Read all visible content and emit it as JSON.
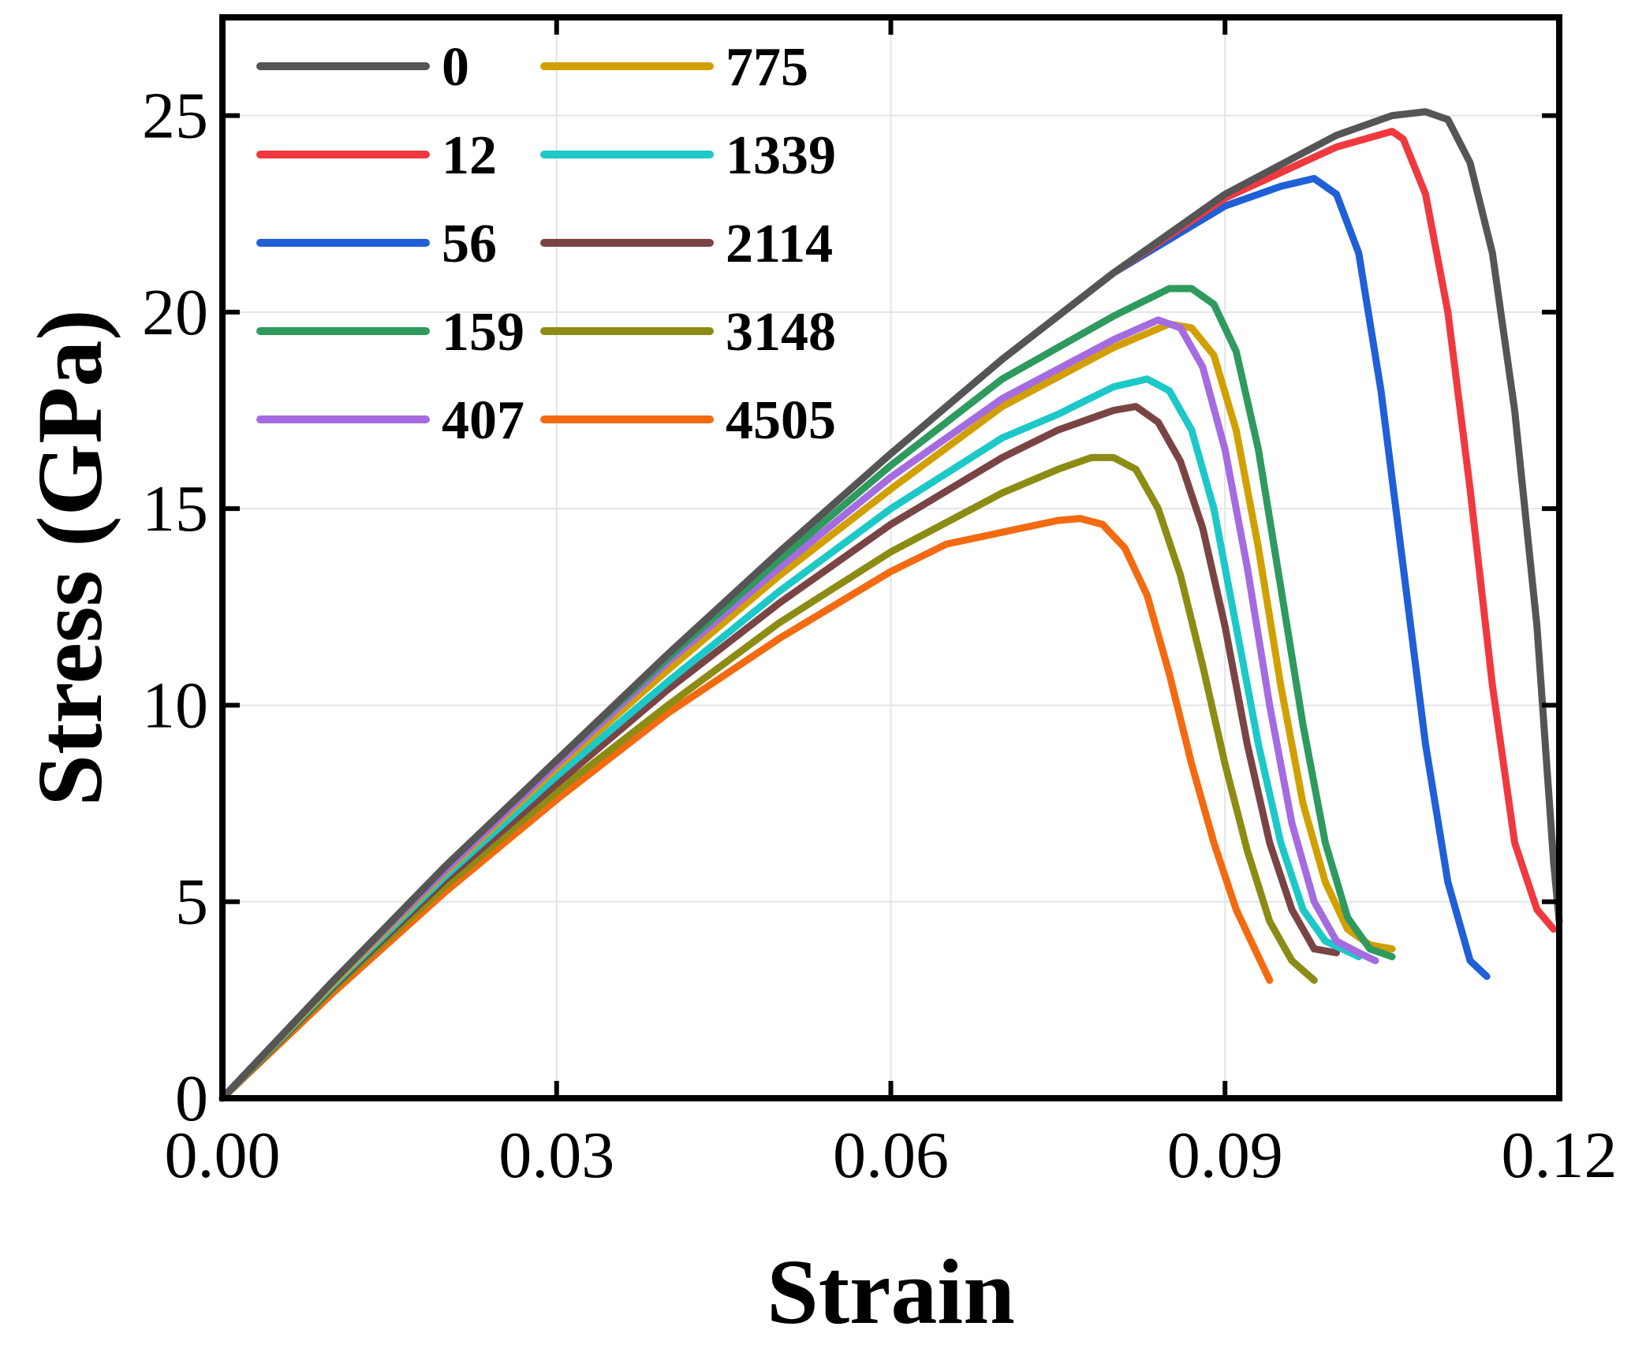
{
  "chart_data": {
    "type": "line",
    "title": "",
    "xlabel": "Strain",
    "ylabel": "Stress (GPa)",
    "xlim": [
      0,
      0.12
    ],
    "ylim": [
      0,
      27.5
    ],
    "xticks": [
      0.0,
      0.03,
      0.06,
      0.09,
      0.12
    ],
    "xtick_labels": [
      "0.00",
      "0.03",
      "0.06",
      "0.09",
      "0.12"
    ],
    "yticks": [
      0,
      5,
      10,
      15,
      20,
      25
    ],
    "ytick_labels": [
      "0",
      "5",
      "10",
      "15",
      "20",
      "25"
    ],
    "grid": true,
    "legend_position": "top-left",
    "series": [
      {
        "name": "0",
        "color": "#555555",
        "points": [
          [
            0,
            0
          ],
          [
            0.01,
            3.0
          ],
          [
            0.02,
            5.9
          ],
          [
            0.03,
            8.6
          ],
          [
            0.04,
            11.3
          ],
          [
            0.05,
            13.9
          ],
          [
            0.06,
            16.4
          ],
          [
            0.07,
            18.8
          ],
          [
            0.08,
            21.0
          ],
          [
            0.09,
            23.0
          ],
          [
            0.1,
            24.5
          ],
          [
            0.105,
            25.0
          ],
          [
            0.108,
            25.1
          ],
          [
            0.11,
            24.9
          ],
          [
            0.112,
            23.8
          ],
          [
            0.114,
            21.5
          ],
          [
            0.116,
            17.5
          ],
          [
            0.118,
            12.0
          ],
          [
            0.1195,
            6.0
          ],
          [
            0.12,
            4.5
          ]
        ]
      },
      {
        "name": "12",
        "color": "#F0393F",
        "points": [
          [
            0,
            0
          ],
          [
            0.01,
            3.0
          ],
          [
            0.02,
            5.9
          ],
          [
            0.03,
            8.6
          ],
          [
            0.04,
            11.3
          ],
          [
            0.05,
            13.9
          ],
          [
            0.06,
            16.4
          ],
          [
            0.07,
            18.8
          ],
          [
            0.08,
            21.0
          ],
          [
            0.09,
            22.9
          ],
          [
            0.1,
            24.2
          ],
          [
            0.105,
            24.6
          ],
          [
            0.106,
            24.4
          ],
          [
            0.108,
            23.0
          ],
          [
            0.11,
            20.0
          ],
          [
            0.112,
            15.5
          ],
          [
            0.114,
            10.5
          ],
          [
            0.116,
            6.5
          ],
          [
            0.118,
            4.8
          ],
          [
            0.1195,
            4.3
          ]
        ]
      },
      {
        "name": "56",
        "color": "#1F5FD8",
        "points": [
          [
            0,
            0
          ],
          [
            0.01,
            3.0
          ],
          [
            0.02,
            5.9
          ],
          [
            0.03,
            8.6
          ],
          [
            0.04,
            11.3
          ],
          [
            0.05,
            13.9
          ],
          [
            0.06,
            16.4
          ],
          [
            0.07,
            18.8
          ],
          [
            0.08,
            21.0
          ],
          [
            0.09,
            22.7
          ],
          [
            0.095,
            23.2
          ],
          [
            0.098,
            23.4
          ],
          [
            0.1,
            23.0
          ],
          [
            0.102,
            21.5
          ],
          [
            0.104,
            18.0
          ],
          [
            0.106,
            13.5
          ],
          [
            0.108,
            9.0
          ],
          [
            0.11,
            5.5
          ],
          [
            0.112,
            3.5
          ],
          [
            0.1135,
            3.1
          ]
        ]
      },
      {
        "name": "159",
        "color": "#2E9A5E",
        "points": [
          [
            0,
            0
          ],
          [
            0.01,
            3.0
          ],
          [
            0.02,
            5.9
          ],
          [
            0.03,
            8.6
          ],
          [
            0.04,
            11.2
          ],
          [
            0.05,
            13.7
          ],
          [
            0.06,
            16.1
          ],
          [
            0.07,
            18.3
          ],
          [
            0.08,
            19.9
          ],
          [
            0.085,
            20.6
          ],
          [
            0.087,
            20.6
          ],
          [
            0.089,
            20.2
          ],
          [
            0.091,
            19.0
          ],
          [
            0.093,
            16.5
          ],
          [
            0.095,
            13.0
          ],
          [
            0.097,
            9.5
          ],
          [
            0.099,
            6.5
          ],
          [
            0.101,
            4.6
          ],
          [
            0.103,
            3.8
          ],
          [
            0.105,
            3.6
          ]
        ]
      },
      {
        "name": "407",
        "color": "#A56BE0",
        "points": [
          [
            0,
            0
          ],
          [
            0.01,
            3.0
          ],
          [
            0.02,
            5.8
          ],
          [
            0.03,
            8.5
          ],
          [
            0.04,
            11.1
          ],
          [
            0.05,
            13.5
          ],
          [
            0.06,
            15.8
          ],
          [
            0.07,
            17.8
          ],
          [
            0.08,
            19.3
          ],
          [
            0.084,
            19.8
          ],
          [
            0.086,
            19.6
          ],
          [
            0.088,
            18.6
          ],
          [
            0.09,
            16.5
          ],
          [
            0.092,
            13.5
          ],
          [
            0.094,
            10.0
          ],
          [
            0.096,
            7.0
          ],
          [
            0.098,
            5.0
          ],
          [
            0.1,
            4.0
          ],
          [
            0.102,
            3.7
          ],
          [
            0.1035,
            3.5
          ]
        ]
      },
      {
        "name": "775",
        "color": "#D1A000",
        "points": [
          [
            0,
            0
          ],
          [
            0.01,
            2.95
          ],
          [
            0.02,
            5.75
          ],
          [
            0.03,
            8.4
          ],
          [
            0.04,
            10.9
          ],
          [
            0.05,
            13.3
          ],
          [
            0.06,
            15.5
          ],
          [
            0.07,
            17.6
          ],
          [
            0.08,
            19.1
          ],
          [
            0.085,
            19.7
          ],
          [
            0.087,
            19.6
          ],
          [
            0.089,
            18.9
          ],
          [
            0.091,
            17.0
          ],
          [
            0.093,
            14.0
          ],
          [
            0.095,
            10.5
          ],
          [
            0.097,
            7.5
          ],
          [
            0.099,
            5.5
          ],
          [
            0.101,
            4.3
          ],
          [
            0.103,
            3.9
          ],
          [
            0.105,
            3.8
          ]
        ]
      },
      {
        "name": "1339",
        "color": "#1CC8C8",
        "points": [
          [
            0,
            0
          ],
          [
            0.01,
            2.9
          ],
          [
            0.02,
            5.65
          ],
          [
            0.03,
            8.2
          ],
          [
            0.04,
            10.6
          ],
          [
            0.05,
            12.9
          ],
          [
            0.06,
            15.0
          ],
          [
            0.07,
            16.8
          ],
          [
            0.075,
            17.4
          ],
          [
            0.08,
            18.1
          ],
          [
            0.083,
            18.3
          ],
          [
            0.085,
            18.0
          ],
          [
            0.087,
            17.0
          ],
          [
            0.089,
            15.0
          ],
          [
            0.091,
            12.0
          ],
          [
            0.093,
            9.0
          ],
          [
            0.095,
            6.5
          ],
          [
            0.097,
            4.8
          ],
          [
            0.099,
            4.0
          ],
          [
            0.102,
            3.6
          ]
        ]
      },
      {
        "name": "2114",
        "color": "#7A4445",
        "points": [
          [
            0,
            0
          ],
          [
            0.01,
            2.85
          ],
          [
            0.02,
            5.55
          ],
          [
            0.03,
            8.0
          ],
          [
            0.04,
            10.4
          ],
          [
            0.05,
            12.6
          ],
          [
            0.06,
            14.6
          ],
          [
            0.07,
            16.3
          ],
          [
            0.075,
            17.0
          ],
          [
            0.08,
            17.5
          ],
          [
            0.082,
            17.6
          ],
          [
            0.084,
            17.2
          ],
          [
            0.086,
            16.2
          ],
          [
            0.088,
            14.5
          ],
          [
            0.09,
            12.0
          ],
          [
            0.092,
            9.0
          ],
          [
            0.094,
            6.5
          ],
          [
            0.096,
            4.8
          ],
          [
            0.098,
            3.8
          ],
          [
            0.1,
            3.7
          ]
        ]
      },
      {
        "name": "3148",
        "color": "#8C8C14",
        "points": [
          [
            0,
            0
          ],
          [
            0.01,
            2.8
          ],
          [
            0.02,
            5.4
          ],
          [
            0.03,
            7.8
          ],
          [
            0.04,
            10.0
          ],
          [
            0.05,
            12.1
          ],
          [
            0.06,
            13.9
          ],
          [
            0.07,
            15.4
          ],
          [
            0.075,
            16.0
          ],
          [
            0.078,
            16.3
          ],
          [
            0.08,
            16.3
          ],
          [
            0.082,
            16.0
          ],
          [
            0.084,
            15.0
          ],
          [
            0.086,
            13.3
          ],
          [
            0.088,
            11.0
          ],
          [
            0.09,
            8.5
          ],
          [
            0.092,
            6.3
          ],
          [
            0.094,
            4.5
          ],
          [
            0.096,
            3.5
          ],
          [
            0.098,
            3.0
          ]
        ]
      },
      {
        "name": "4505",
        "color": "#F36A10",
        "points": [
          [
            0,
            0
          ],
          [
            0.01,
            2.7
          ],
          [
            0.02,
            5.25
          ],
          [
            0.03,
            7.6
          ],
          [
            0.04,
            9.8
          ],
          [
            0.05,
            11.7
          ],
          [
            0.06,
            13.4
          ],
          [
            0.065,
            14.1
          ],
          [
            0.07,
            14.4
          ],
          [
            0.075,
            14.7
          ],
          [
            0.077,
            14.75
          ],
          [
            0.079,
            14.6
          ],
          [
            0.081,
            14.0
          ],
          [
            0.083,
            12.8
          ],
          [
            0.085,
            10.8
          ],
          [
            0.087,
            8.5
          ],
          [
            0.089,
            6.5
          ],
          [
            0.091,
            4.8
          ],
          [
            0.093,
            3.6
          ],
          [
            0.094,
            3.0
          ]
        ]
      }
    ]
  }
}
